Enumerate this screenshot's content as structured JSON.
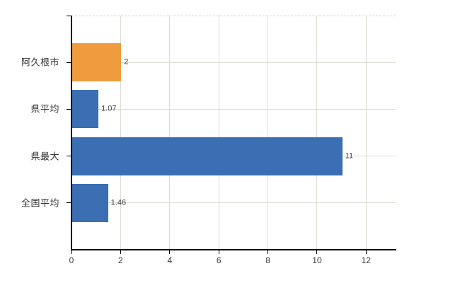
{
  "chart_data": {
    "type": "bar",
    "orientation": "horizontal",
    "title": "",
    "xlabel": "",
    "ylabel": "",
    "categories": [
      "阿久根市",
      "県平均",
      "県最大",
      "全国平均"
    ],
    "values": [
      2,
      1.07,
      11,
      1.46
    ],
    "value_labels": [
      "2",
      "1.07",
      "11",
      "1.46"
    ],
    "bar_colors": [
      "#ef9c3e",
      "#3c6eb4",
      "#3c6eb4",
      "#3c6eb4"
    ],
    "x_ticks": [
      0,
      2,
      4,
      6,
      8,
      10,
      12
    ],
    "x_tick_labels": [
      "0",
      "2",
      "4",
      "6",
      "8",
      "10",
      "12"
    ],
    "xlim": [
      0,
      13.2
    ],
    "grid": "on",
    "legend": "none",
    "colors": {
      "highlight_bar": "#ef9c3e",
      "default_bar": "#3c6eb4",
      "gridline": "#d9ddd2",
      "top_border": "#d3d0d6",
      "axis": "#000000",
      "category_text": "#333333",
      "value_text": "#3d3d3d",
      "tick_text": "#3a3a3a",
      "background": "#ffffff"
    }
  }
}
